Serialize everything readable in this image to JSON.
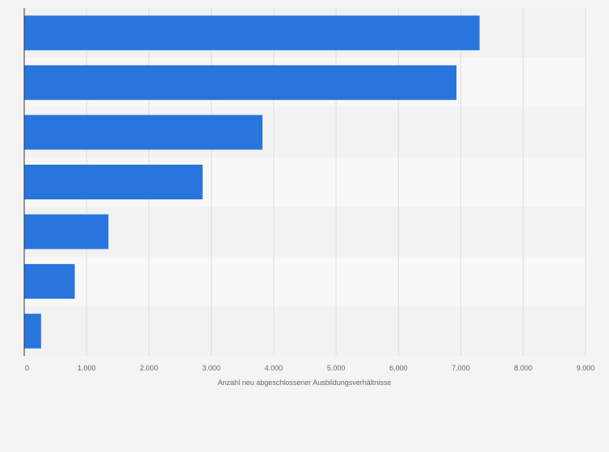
{
  "chart_data": {
    "type": "bar",
    "orientation": "horizontal",
    "categories": [
      "",
      "",
      "",
      "",
      "",
      "",
      ""
    ],
    "values": [
      7300,
      6930,
      3820,
      2860,
      1350,
      810,
      270
    ],
    "title": "",
    "xlabel": "Anzahl neu abgeschlossener Ausbildungsverhältnisse",
    "ylabel": "",
    "xlim": [
      0,
      9000
    ],
    "x_ticks": [
      0,
      1000,
      2000,
      3000,
      4000,
      5000,
      6000,
      7000,
      8000,
      9000
    ],
    "x_tick_labels": [
      "0",
      "1.000",
      "2.000",
      "3.000",
      "4.000",
      "5.000",
      "6.000",
      "7.000",
      "8.000",
      "9.000"
    ],
    "grid": true,
    "legend": "none",
    "colors": {
      "bar": "#2876dd",
      "background": "#f4f4f4",
      "band_light": "#f8f8f8",
      "band_dark": "#f2f2f2",
      "grid": "#dddddd",
      "axis": "#333333",
      "text": "#666666"
    }
  }
}
